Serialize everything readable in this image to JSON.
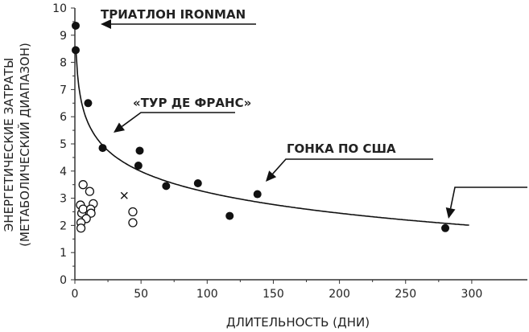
{
  "chart_data": {
    "type": "scatter",
    "title": "",
    "xlabel": "ДЛИТЕЛЬНОСТЬ (ДНИ)",
    "ylabel_lines": [
      "ЭНЕРГЕТИЧЕСКИЕ ЗАТРАТЫ",
      "(МЕТАБОЛИЧЕСКИЙ ДИАПАЗОН)"
    ],
    "xlim": [
      0,
      340
    ],
    "ylim": [
      0,
      10
    ],
    "xticks": [
      0,
      50,
      100,
      150,
      200,
      250,
      300
    ],
    "yticks": [
      0,
      1,
      2,
      3,
      4,
      5,
      6,
      7,
      8,
      9,
      10
    ],
    "grid": false,
    "series": [
      {
        "name": "filled",
        "marker": "filled-circle",
        "points": [
          [
            0.6,
            9.35
          ],
          [
            0.6,
            8.45
          ],
          [
            10,
            6.5
          ],
          [
            21,
            4.85
          ],
          [
            49,
            4.75
          ],
          [
            48,
            4.2
          ],
          [
            69,
            3.45
          ],
          [
            93,
            3.55
          ],
          [
            117,
            2.35
          ],
          [
            138,
            3.15
          ],
          [
            280,
            1.9
          ]
        ]
      },
      {
        "name": "open",
        "marker": "open-circle",
        "points": [
          [
            4.2,
            2.75
          ],
          [
            6.2,
            3.5
          ],
          [
            11.2,
            3.25
          ],
          [
            13.9,
            2.8
          ],
          [
            5.2,
            2.45
          ],
          [
            6.2,
            2.6
          ],
          [
            11.9,
            2.6
          ],
          [
            12.2,
            2.45
          ],
          [
            8.6,
            2.25
          ],
          [
            4.6,
            2.1
          ],
          [
            4.6,
            1.9
          ],
          [
            43.8,
            2.5
          ],
          [
            43.8,
            2.1
          ]
        ]
      },
      {
        "name": "cross",
        "marker": "x",
        "points": [
          [
            37.3,
            3.1
          ]
        ]
      }
    ],
    "fit_curve": {
      "form": "y = a - b*ln(x)",
      "a": 8.32,
      "b": 1.108,
      "x_range": [
        1,
        298
      ]
    },
    "annotations": [
      {
        "text": "ТРИАТЛОН IRONMAN",
        "points_to": [
          0.6,
          9.35
        ]
      },
      {
        "text": "«ТУР ДЕ ФРАНС»",
        "points_to": [
          21,
          4.85
        ]
      },
      {
        "text": "ГОНКА ПО США",
        "points_to": [
          138,
          3.15
        ]
      },
      {
        "text": "",
        "points_to": [
          280,
          1.9
        ]
      }
    ]
  }
}
